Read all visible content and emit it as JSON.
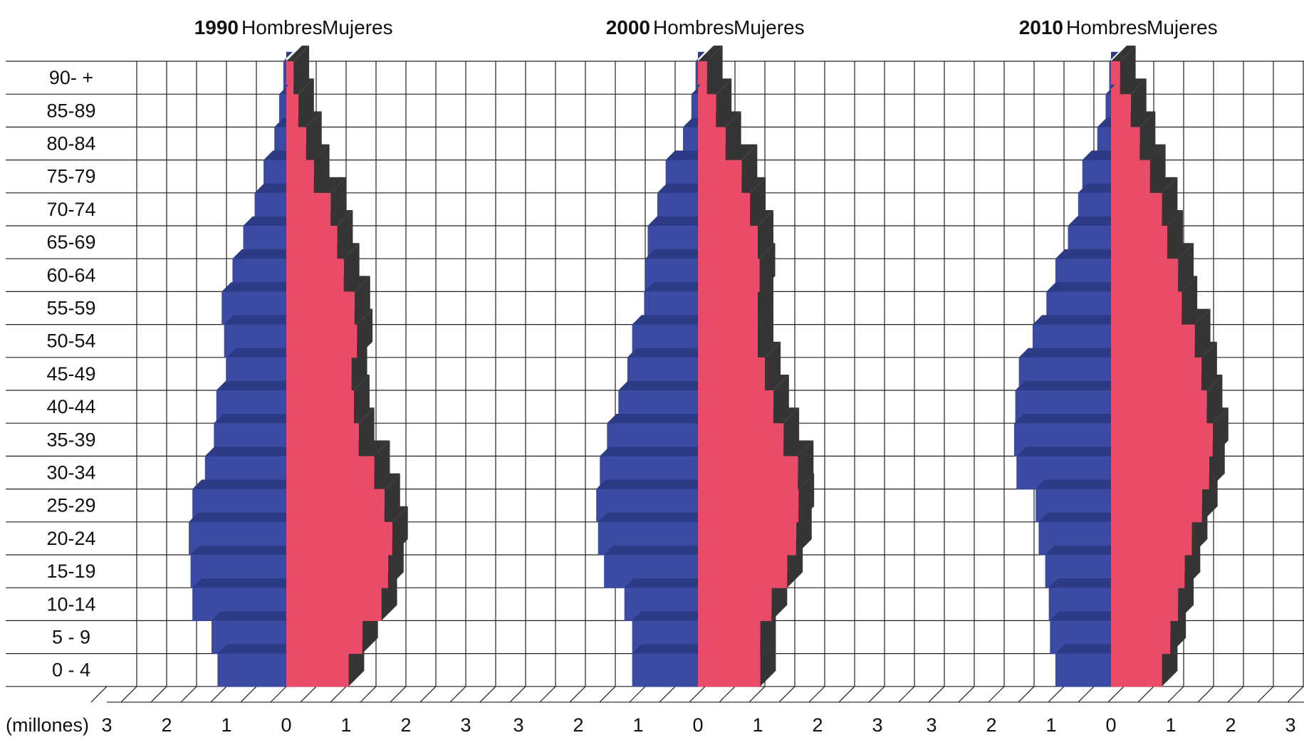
{
  "chart_data": {
    "type": "bar",
    "orientation": "horizontal",
    "age_groups": [
      "90- +",
      "85-89",
      "80-84",
      "75-79",
      "70-74",
      "65-69",
      "60-64",
      "55-59",
      "50-54",
      "45-49",
      "40-44",
      "35-39",
      "30-34",
      "25-29",
      "20-24",
      "15-19",
      "10-14",
      "5 - 9",
      "0 - 4"
    ],
    "x_unit_label": "(millones)",
    "x_ticks": [
      "3",
      "2",
      "1",
      "0",
      "1",
      "2",
      "3"
    ],
    "xlim": [
      -3,
      3
    ],
    "men_label": "Hombres",
    "women_label": "Mujeres",
    "men_color": "#3b4aa3",
    "women_color": "#ea4b69",
    "shadow_color": "#353535",
    "grid": true,
    "pyramids": [
      {
        "year": "1990",
        "men": [
          0.05,
          0.12,
          0.2,
          0.38,
          0.53,
          0.72,
          0.9,
          1.08,
          1.04,
          1.0,
          1.17,
          1.21,
          1.36,
          1.57,
          1.63,
          1.6,
          1.57,
          1.25,
          1.15
        ],
        "women": [
          0.12,
          0.2,
          0.33,
          0.46,
          0.74,
          0.85,
          0.96,
          1.14,
          1.18,
          1.09,
          1.13,
          1.21,
          1.47,
          1.64,
          1.77,
          1.7,
          1.59,
          1.27,
          1.04
        ]
      },
      {
        "year": "2000",
        "men": [
          0.04,
          0.11,
          0.25,
          0.54,
          0.68,
          0.84,
          0.88,
          0.9,
          1.1,
          1.18,
          1.33,
          1.52,
          1.64,
          1.7,
          1.67,
          1.57,
          1.23,
          1.1,
          1.1
        ],
        "women": [
          0.15,
          0.3,
          0.46,
          0.73,
          0.87,
          1.0,
          1.03,
          1.0,
          1.0,
          1.12,
          1.26,
          1.43,
          1.67,
          1.68,
          1.64,
          1.49,
          1.23,
          1.04,
          1.04
        ]
      },
      {
        "year": "2010",
        "men": [
          0.03,
          0.09,
          0.23,
          0.48,
          0.55,
          0.72,
          0.93,
          1.08,
          1.31,
          1.54,
          1.6,
          1.62,
          1.58,
          1.26,
          1.21,
          1.1,
          1.04,
          1.02,
          0.93
        ],
        "women": [
          0.15,
          0.33,
          0.48,
          0.65,
          0.85,
          0.94,
          1.12,
          1.18,
          1.4,
          1.51,
          1.6,
          1.7,
          1.64,
          1.52,
          1.35,
          1.23,
          1.12,
          0.99,
          0.85
        ]
      }
    ]
  }
}
